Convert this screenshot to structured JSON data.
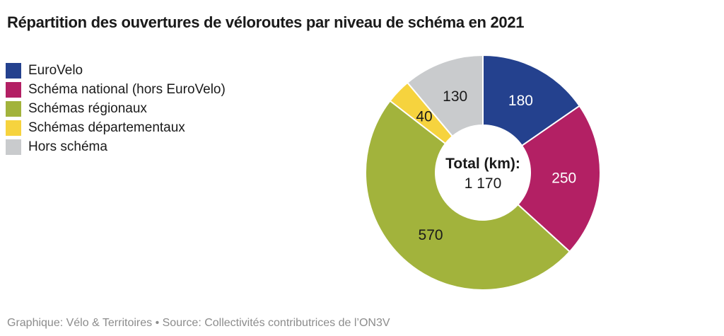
{
  "title": "Répartition des ouvertures de véloroutes par niveau de schéma en 2021",
  "footer": "Graphique: Vélo & Territoires • Source: Collectivités contributrices de l’ON3V",
  "chart_data": {
    "type": "pie",
    "subtype": "donut",
    "title": "Répartition des ouvertures de véloroutes par niveau de schéma en 2021",
    "unit": "km",
    "total": 1170,
    "center_label": "Total (km):",
    "center_value": "1 170",
    "legend_position": "left",
    "start_angle_deg": 0,
    "direction": "clockwise",
    "segments": [
      {
        "label": "EuroVelo",
        "value": 180,
        "color": "#24418E",
        "value_label_color": "#FFFFFF"
      },
      {
        "label": "Schéma national (hors EuroVelo)",
        "value": 250,
        "color": "#B32064",
        "value_label_color": "#FFFFFF"
      },
      {
        "label": "Schémas régionaux",
        "value": 570,
        "color": "#A2B33C",
        "value_label_color": "#1A1A1A"
      },
      {
        "label": "Schémas départementaux",
        "value": 40,
        "color": "#F6D33E",
        "value_label_color": "#1A1A1A"
      },
      {
        "label": "Hors schéma",
        "value": 130,
        "color": "#C9CBCD",
        "value_label_color": "#1A1A1A"
      }
    ]
  }
}
